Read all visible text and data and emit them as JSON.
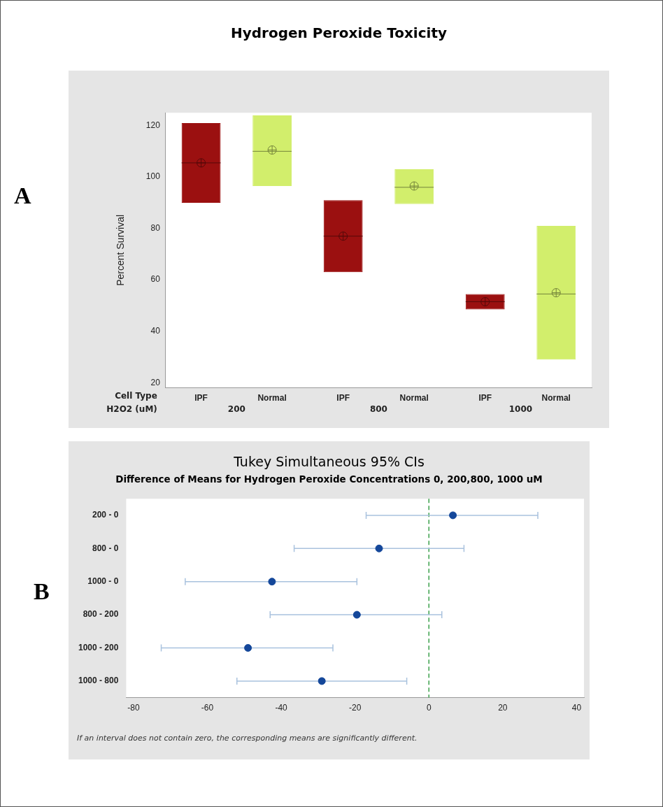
{
  "chart_data": [
    {
      "type": "box",
      "title": "Hydrogen Peroxide Toxicity",
      "ylabel": "Percent Survival",
      "categories": [
        "IPF",
        "Normal",
        "IPF",
        "Normal",
        "IPF",
        "Normal"
      ],
      "boxes": [
        {
          "low": 90,
          "q1": 90,
          "median": 105.5,
          "q3": 121,
          "high": 121,
          "mean": 105.5
        },
        {
          "low": 96.5,
          "q1": 96.5,
          "median": 110,
          "q3": 124,
          "high": 124,
          "mean": 110.5
        },
        {
          "low": 63,
          "q1": 63,
          "median": 77,
          "q3": 91,
          "high": 91,
          "mean": 77
        },
        {
          "low": 89.5,
          "q1": 89.5,
          "median": 96,
          "q3": 103,
          "high": 103,
          "mean": 96.5
        },
        {
          "low": 48.5,
          "q1": 48.5,
          "median": 51.5,
          "q3": 54.5,
          "high": 54.5,
          "mean": 51.5
        },
        {
          "low": 29,
          "q1": 29,
          "median": 54.5,
          "q3": 81,
          "high": 81,
          "mean": 55
        }
      ],
      "colors": [
        "#9b1010",
        "#d2ee6c",
        "#9b1010",
        "#d2ee6c",
        "#9b1010",
        "#d2ee6c"
      ],
      "ylim": [
        18,
        125
      ],
      "yticks": [
        20,
        40,
        60,
        80,
        100,
        120
      ],
      "grid": false,
      "legend": false,
      "annotations": [
        "A",
        "Cell Type",
        "H2O2 (uM)",
        "200",
        "800",
        "1000"
      ]
    },
    {
      "type": "scatter",
      "orientation": "horizontal",
      "title": "Tukey Simultaneous 95% CIs",
      "subtitle": "Difference of Means for Hydrogen Peroxide Concentrations 0, 200,800, 1000 uM",
      "categories": [
        "200 - 0",
        "800 - 0",
        "1000 - 0",
        "800 - 200",
        "1000 - 200",
        "1000 - 800"
      ],
      "values": [
        6.5,
        -13.5,
        -42.5,
        -19.5,
        -49,
        -29
      ],
      "errors": [
        [
          -17,
          29.5
        ],
        [
          -36.5,
          9.5
        ],
        [
          -66,
          -19.5
        ],
        [
          -43,
          3.5
        ],
        [
          -72.5,
          -26
        ],
        [
          -52,
          -6
        ]
      ],
      "color": "#14479a",
      "marker": "circle",
      "xlim": [
        -82,
        42
      ],
      "xticks": [
        -80,
        -60,
        -40,
        -20,
        0,
        20,
        40
      ],
      "grid": false,
      "legend": false,
      "ref_lines": [
        {
          "axis": "x",
          "value": 0,
          "color": "#3aa04a",
          "line_style": "dashed"
        }
      ],
      "annotations": [
        "B",
        "If an interval does not contain zero, the corresponding means are significantly different."
      ]
    }
  ]
}
